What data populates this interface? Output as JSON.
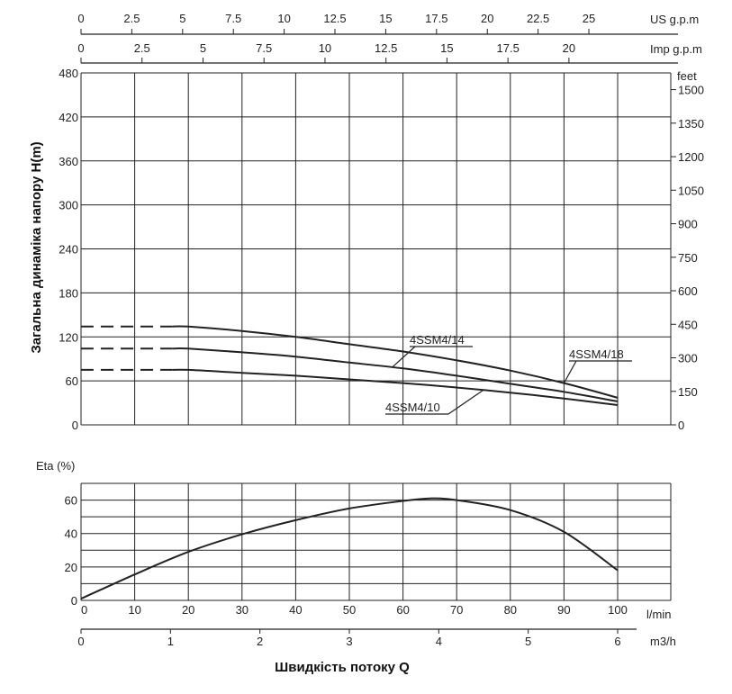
{
  "chart_data": [
    {
      "type": "line",
      "ylabel": "Загальна динаміка напору H(m)",
      "ylim": [
        0,
        480
      ],
      "yticks": [
        0,
        60,
        120,
        180,
        240,
        300,
        360,
        420,
        480
      ],
      "xlim_lpm": [
        0,
        110
      ],
      "grid": true,
      "top_axes": [
        {
          "unit": "US g.p.m",
          "ticks": [
            "0",
            "2.5",
            "5",
            "7.5",
            "10",
            "12.5",
            "15",
            "17.5",
            "20",
            "22.5",
            "25"
          ],
          "values": [
            0,
            2.5,
            5,
            7.5,
            10,
            12.5,
            15,
            17.5,
            20,
            22.5,
            25
          ]
        },
        {
          "unit": "Imp g.p.m",
          "ticks": [
            "0",
            "2.5",
            "5",
            "7.5",
            "10",
            "12.5",
            "15",
            "17.5",
            "20"
          ],
          "values": [
            0,
            2.5,
            5,
            7.5,
            10,
            12.5,
            15,
            17.5,
            20
          ]
        }
      ],
      "right_axis": {
        "unit": "feet",
        "ticks": [
          "0",
          "150",
          "300",
          "450",
          "600",
          "750",
          "900",
          "1050",
          "1200",
          "1350",
          "1500"
        ],
        "values": [
          0,
          150,
          300,
          450,
          600,
          750,
          900,
          1050,
          1200,
          1350,
          1500
        ]
      },
      "series": [
        {
          "name": "4SSM4/18",
          "x": [
            0,
            10,
            20,
            30,
            40,
            50,
            60,
            70,
            80,
            90,
            100
          ],
          "y": [
            134,
            134,
            134,
            128,
            120,
            110,
            100,
            88,
            74,
            57,
            37
          ],
          "dashed_until": 17
        },
        {
          "name": "4SSM4/14",
          "x": [
            0,
            10,
            20,
            30,
            40,
            50,
            60,
            70,
            80,
            90,
            100
          ],
          "y": [
            104,
            104,
            104,
            99,
            93,
            85,
            77,
            67,
            56,
            45,
            32
          ],
          "dashed_until": 17
        },
        {
          "name": "4SSM4/10",
          "x": [
            0,
            10,
            20,
            30,
            40,
            50,
            60,
            70,
            80,
            90,
            100
          ],
          "y": [
            75,
            75,
            75,
            71,
            67,
            62,
            57,
            51,
            44,
            36,
            27
          ],
          "dashed_until": 17
        }
      ]
    },
    {
      "type": "line",
      "ylabel": "Eta (%)",
      "ylim": [
        0,
        70
      ],
      "yticks": [
        0,
        20,
        40,
        60
      ],
      "grid": true,
      "x_axis": {
        "unit": "l/min",
        "ticks": [
          "0",
          "10",
          "20",
          "30",
          "40",
          "50",
          "60",
          "70",
          "80",
          "90",
          "100"
        ],
        "values": [
          0,
          10,
          20,
          30,
          40,
          50,
          60,
          70,
          80,
          90,
          100
        ]
      },
      "x_axis_2": {
        "unit": "m3/h",
        "ticks": [
          "0",
          "1",
          "2",
          "3",
          "4",
          "5",
          "6"
        ],
        "values": [
          0,
          1,
          2,
          3,
          4,
          5,
          6
        ]
      },
      "xlabel": "Швидкість потоку Q",
      "series": [
        {
          "name": "",
          "x": [
            0,
            10,
            20,
            30,
            40,
            50,
            60,
            65,
            70,
            80,
            90,
            100
          ],
          "y": [
            1,
            15.5,
            29,
            39.5,
            48,
            55,
            59.5,
            61,
            60,
            54,
            41,
            18
          ]
        }
      ]
    }
  ]
}
